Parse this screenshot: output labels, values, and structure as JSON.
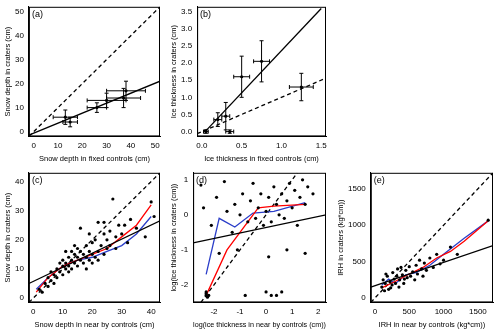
{
  "chart_data": [
    {
      "type": "scatter",
      "title": "(a)",
      "x_label": "Snow depth in fixed controls (cm)",
      "y_label": "Snow depth in craters (cm)",
      "xlim": [
        -2,
        52
      ],
      "ylim": [
        -2,
        52
      ],
      "xticks": [
        0,
        10,
        20,
        30,
        40,
        50
      ],
      "yticks": [
        0,
        10,
        20,
        30,
        40,
        50
      ],
      "grid": false,
      "series": [
        {
          "type": "scatter",
          "color": "#000000",
          "marker": "circle",
          "x": [
            13,
            15,
            26,
            30,
            37,
            38
          ],
          "values": [
            6,
            4,
            10,
            13,
            14,
            17
          ],
          "xerr": [
            5,
            3,
            4,
            8,
            7,
            8
          ],
          "yerr": [
            3,
            2,
            2,
            3,
            4,
            4
          ]
        },
        {
          "type": "line",
          "color": "#000000",
          "line_style": "solid",
          "x": [
            -2,
            52
          ],
          "values": [
            -1.5,
            21
          ]
        },
        {
          "type": "line",
          "color": "#000000",
          "line_style": "dashed",
          "x": [
            -2,
            52
          ],
          "values": [
            -2,
            52
          ]
        }
      ]
    },
    {
      "type": "scatter",
      "title": "(b)",
      "x_label": "Ice thickness in fixed controls (cm)",
      "y_label": "Ice thickness in craters (cm)",
      "xlim": [
        -0.06,
        1.56
      ],
      "ylim": [
        -0.14,
        3.64
      ],
      "xticks": [
        {
          "value": 0,
          "label": "0.0"
        },
        0.5,
        {
          "value": 1,
          "label": "1.0"
        },
        1.5
      ],
      "yticks": [
        {
          "value": 0,
          "label": "0.0"
        },
        0.5,
        {
          "value": 1,
          "label": "1.0"
        },
        1.5,
        {
          "value": 2,
          "label": "2.0"
        },
        2.5,
        {
          "value": 3,
          "label": "3.0"
        },
        3.5
      ],
      "grid": false,
      "series": [
        {
          "type": "scatter",
          "color": "#000000",
          "marker": "circle",
          "x": [
            0.05,
            0.2,
            0.3,
            0.35,
            0.5,
            0.75,
            1.25
          ],
          "values": [
            0.0,
            0.35,
            0.45,
            0.0,
            1.6,
            2.05,
            1.3
          ],
          "xerr": [
            0.03,
            0.05,
            0.05,
            0.05,
            0.1,
            0.1,
            0.15
          ],
          "yerr": [
            0.05,
            0.2,
            0.4,
            0.05,
            0.6,
            0.6,
            0.4
          ]
        },
        {
          "type": "line",
          "color": "#000000",
          "line_style": "solid",
          "x": [
            0.04,
            1.5
          ],
          "values": [
            0,
            3.59
          ]
        },
        {
          "type": "line",
          "color": "#000000",
          "line_style": "dashed",
          "x": [
            -0.06,
            1.56
          ],
          "values": [
            -0.06,
            1.56
          ]
        }
      ]
    },
    {
      "type": "scatter",
      "title": "(c)",
      "x_label": "Snow depth in near by controls (cm)",
      "y_label": "Snow depth in craters (cm)",
      "xlim": [
        -1.5,
        43
      ],
      "ylim": [
        -1.5,
        43
      ],
      "xticks": [
        0,
        10,
        20,
        30,
        40
      ],
      "yticks": [
        0,
        10,
        20,
        30,
        40
      ],
      "grid": false,
      "series": [
        {
          "type": "scatter",
          "color": "#000000",
          "marker": "circle",
          "x": [
            2,
            3,
            4,
            5,
            5,
            6,
            6,
            7,
            7,
            8,
            8,
            9,
            9,
            10,
            10,
            10,
            11,
            11,
            12,
            12,
            12,
            13,
            13,
            13,
            14,
            14,
            15,
            15,
            15,
            16,
            16,
            17,
            17,
            18,
            18,
            18,
            19,
            19,
            20,
            20,
            20,
            21,
            21,
            22,
            22,
            23,
            24,
            24,
            25,
            25,
            26,
            26,
            27,
            28,
            28,
            30,
            31,
            32,
            33,
            35,
            38,
            40,
            41,
            24,
            19,
            14,
            16,
            11,
            22,
            29
          ],
          "values": [
            3,
            2,
            5,
            4,
            7,
            6,
            9,
            5,
            8,
            10,
            7,
            9,
            12,
            11,
            8,
            13,
            10,
            12,
            11,
            14,
            9,
            13,
            10,
            16,
            12,
            15,
            14,
            11,
            17,
            13,
            16,
            15,
            12,
            14,
            18,
            10,
            16,
            13,
            15,
            19,
            12,
            14,
            20,
            16,
            13,
            18,
            15,
            22,
            17,
            20,
            23,
            18,
            34,
            21,
            17,
            22,
            25,
            19,
            27,
            24,
            21,
            33,
            28,
            26,
            22,
            18,
            24,
            16,
            26,
            25
          ]
        },
        {
          "type": "line",
          "color": "#000000",
          "line_style": "solid",
          "x": [
            -1.5,
            43
          ],
          "values": [
            5,
            26.5
          ]
        },
        {
          "type": "line",
          "color": "#ff0000",
          "line_style": "solid",
          "x": [
            1,
            5,
            10,
            15,
            20,
            25,
            30,
            35,
            40
          ],
          "values": [
            2,
            7,
            11,
            13,
            15,
            17,
            21,
            25,
            32
          ]
        },
        {
          "type": "line",
          "color": "#2b3ec9",
          "line_style": "solid",
          "x": [
            1,
            5,
            10,
            15,
            20,
            25,
            30,
            35,
            40
          ],
          "values": [
            3,
            7,
            11,
            13,
            14,
            16,
            18,
            22,
            28
          ]
        },
        {
          "type": "line",
          "color": "#000000",
          "line_style": "dashed",
          "x": [
            -1.5,
            43
          ],
          "values": [
            -1.5,
            43
          ]
        }
      ]
    },
    {
      "type": "scatter",
      "title": "(d)",
      "x_label": "log(ice thickness in near by controls (cm))",
      "y_label": "log(ice thickness in craters (cm))",
      "xlim": [
        -2.8,
        2.3
      ],
      "ylim": [
        -2.5,
        1.2
      ],
      "xticks": [
        -2,
        -1,
        0,
        1,
        2
      ],
      "yticks": [
        -2,
        -1,
        0,
        1
      ],
      "grid": false,
      "series": [
        {
          "type": "scatter",
          "color": "#000000",
          "marker": "circle",
          "x": [
            -2.3,
            -2.3,
            -2.25,
            -2.3,
            -2.2,
            -2.5,
            -2.4,
            -2.1,
            -1.9,
            -1.6,
            -1.5,
            -1.3,
            -1.2,
            -1.0,
            -0.9,
            -0.7,
            -0.6,
            -0.5,
            -0.4,
            -0.3,
            -0.2,
            -0.1,
            0,
            0.1,
            0.2,
            0.3,
            0.4,
            0.5,
            0.6,
            0.7,
            0.8,
            0.9,
            1.0,
            1.1,
            1.2,
            1.3,
            1.4,
            1.5,
            1.6,
            1.8,
            -0.8,
            0.0,
            0.2,
            0.4,
            0.6,
            -1.1,
            -1.8,
            0.1,
            0.8,
            1.5
          ],
          "values": [
            -2.3,
            -2.2,
            -2.35,
            -2.25,
            -2.3,
            0.85,
            0.2,
            -0.3,
            0.5,
            0.95,
            0.1,
            -0.5,
            0.3,
            0.0,
            0.6,
            -0.2,
            0.4,
            0.9,
            -0.1,
            0.2,
            0.6,
            -0.3,
            0.1,
            0.5,
            -0.2,
            0.8,
            0.3,
            0.0,
            0.6,
            -0.1,
            0.4,
            0.9,
            0.2,
            0.7,
            -0.3,
            0.5,
            1.0,
            0.3,
            0.8,
            0.6,
            -2.3,
            -2.2,
            -2.3,
            -2.3,
            -2.2,
            -1.0,
            -1.1,
            -1.2,
            -1.0,
            -1.1
          ]
        },
        {
          "type": "line",
          "color": "#000000",
          "line_style": "solid",
          "x": [
            -2.8,
            2.3
          ],
          "values": [
            -0.8,
            0.0
          ]
        },
        {
          "type": "line",
          "color": "#ff0000",
          "line_style": "solid",
          "x": [
            -2.3,
            -1.5,
            -0.3,
            0.3,
            1.5
          ],
          "values": [
            -2.3,
            -1.0,
            0.2,
            0.25,
            0.3
          ]
        },
        {
          "type": "line",
          "color": "#2b3ec9",
          "line_style": "solid",
          "x": [
            -2.3,
            -1.8,
            -1.2,
            -0.5,
            0.3,
            1.5
          ],
          "values": [
            -1.7,
            -0.1,
            -0.35,
            0.05,
            0.1,
            0.35
          ]
        },
        {
          "type": "line",
          "color": "#000000",
          "line_style": "dashed",
          "x": [
            -2.5,
            1.2
          ],
          "values": [
            -2.5,
            1.2
          ]
        }
      ]
    },
    {
      "type": "scatter",
      "title": "(e)",
      "x_label": "IRH in near by controls (kg*cm))",
      "y_label": "IRH in craters (kg*cm))",
      "xlim": [
        -60,
        1720
      ],
      "ylim": [
        -60,
        1720
      ],
      "xticks": [
        0,
        500,
        1000,
        1500
      ],
      "yticks": [
        0,
        500,
        1000,
        1500
      ],
      "grid": false,
      "series": [
        {
          "type": "scatter",
          "color": "#000000",
          "marker": "circle",
          "x": [
            100,
            120,
            150,
            180,
            200,
            220,
            250,
            260,
            280,
            300,
            320,
            350,
            360,
            380,
            400,
            420,
            450,
            470,
            500,
            520,
            550,
            580,
            600,
            620,
            650,
            680,
            700,
            720,
            750,
            800,
            850,
            900,
            950,
            1000,
            1100,
            1200,
            1650,
            140,
            230,
            330,
            430,
            160
          ],
          "values": [
            150,
            250,
            200,
            300,
            120,
            220,
            180,
            350,
            260,
            200,
            300,
            150,
            250,
            420,
            320,
            200,
            380,
            280,
            430,
            300,
            360,
            250,
            450,
            330,
            520,
            400,
            300,
            480,
            380,
            550,
            420,
            600,
            470,
            520,
            700,
            600,
            1070,
            100,
            140,
            400,
            260,
            330
          ]
        },
        {
          "type": "line",
          "color": "#000000",
          "line_style": "solid",
          "x": [
            -60,
            1720
          ],
          "values": [
            150,
            720
          ]
        },
        {
          "type": "line",
          "color": "#ff0000",
          "line_style": "solid",
          "x": [
            100,
            300,
            500,
            700,
            900,
            1100,
            1300,
            1650
          ],
          "values": [
            140,
            230,
            330,
            420,
            550,
            640,
            780,
            1060
          ]
        },
        {
          "type": "line",
          "color": "#2b3ec9",
          "line_style": "solid",
          "x": [
            100,
            200,
            300,
            450,
            600,
            800,
            1000,
            1300,
            1650
          ],
          "values": [
            180,
            260,
            200,
            320,
            350,
            450,
            600,
            820,
            1060
          ]
        },
        {
          "type": "line",
          "color": "#000000",
          "line_style": "dashed",
          "x": [
            -60,
            1720
          ],
          "values": [
            -60,
            1720
          ]
        }
      ]
    }
  ]
}
